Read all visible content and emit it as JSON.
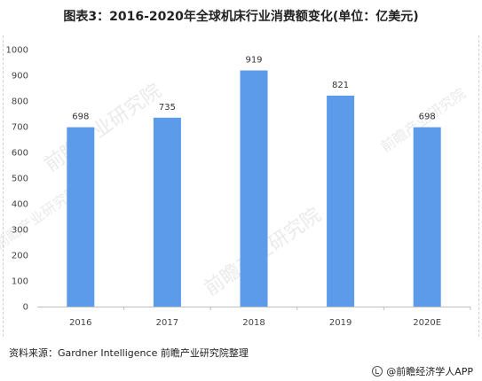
{
  "title": "图表3：2016-2020年全球机床行业消费额变化(单位：亿美元)",
  "source": "资料来源：Gardner Intelligence 前瞻产业研究院整理",
  "footer": "@前瞻经济学人APP",
  "watermark_text": "前瞻产业研究院",
  "colors": {
    "bar": "#5b9bea",
    "axis": "#bfbfbf"
  },
  "chart_data": {
    "type": "bar",
    "title": "图表3：2016-2020年全球机床行业消费额变化(单位：亿美元)",
    "categories": [
      "2016",
      "2017",
      "2018",
      "2019",
      "2020E"
    ],
    "values": [
      698,
      735,
      919,
      821,
      698
    ],
    "data_labels": [
      "698",
      "735",
      "919",
      "821",
      "698"
    ],
    "ylim": [
      0,
      1000
    ],
    "yticks": [
      0,
      100,
      200,
      300,
      400,
      500,
      600,
      700,
      800,
      900,
      1000
    ],
    "xlabel": "",
    "ylabel": "",
    "grid": false,
    "legend": "none"
  }
}
